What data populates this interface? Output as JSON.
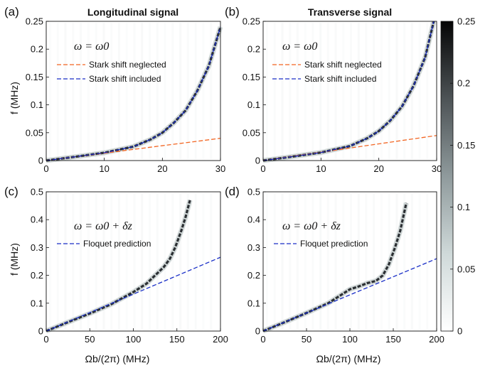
{
  "colors": {
    "red_dashed": "#f26522",
    "blue_dashed": "#1a2fc7"
  },
  "colorbar": {
    "min": 0,
    "max": 0.25,
    "ticks": [
      "0.25",
      "0.2",
      "0.15",
      "0.1",
      "0.05",
      "0"
    ]
  },
  "chart_data": [
    {
      "id": "a",
      "type": "heatmap",
      "panel_label": "(a)",
      "title": "Longitudinal signal",
      "condition": "ω = ω0",
      "xlabel": "",
      "ylabel": "f (MHz)",
      "xlim": [
        0,
        30
      ],
      "ylim": [
        0,
        0.25
      ],
      "xticks": [
        0,
        10,
        20,
        30
      ],
      "xticklabels": [
        "0",
        "10",
        "20",
        "30"
      ],
      "yticks": [
        0,
        0.05,
        0.1,
        0.15,
        0.2,
        0.25
      ],
      "yticklabels": [
        "0",
        "0.05",
        "0.1",
        "0.15",
        "0.2",
        "0.25"
      ],
      "legend": [
        "Stark shift neglected",
        "Stark shift included"
      ],
      "series": [
        {
          "name": "Stark shift neglected",
          "style": "dashed",
          "color": "#f26522",
          "x": [
            0,
            5,
            10,
            15,
            20,
            25,
            30
          ],
          "y": [
            0,
            0.0067,
            0.0133,
            0.02,
            0.0267,
            0.0333,
            0.04
          ]
        },
        {
          "name": "Stark shift included",
          "style": "dashed",
          "color": "#1a2fc7",
          "x": [
            0,
            5,
            10,
            15,
            18,
            20,
            22,
            24,
            26,
            28,
            30
          ],
          "y": [
            0,
            0.0068,
            0.014,
            0.025,
            0.038,
            0.05,
            0.068,
            0.09,
            0.125,
            0.17,
            0.24
          ]
        }
      ]
    },
    {
      "id": "b",
      "type": "heatmap",
      "panel_label": "(b)",
      "title": "Transverse signal",
      "condition": "ω = ω0",
      "xlabel": "",
      "ylabel": "",
      "xlim": [
        0,
        30
      ],
      "ylim": [
        0,
        0.25
      ],
      "xticks": [
        0,
        10,
        20,
        30
      ],
      "xticklabels": [
        "0",
        "10",
        "20",
        "30"
      ],
      "yticks": [
        0,
        0.05,
        0.1,
        0.15,
        0.2,
        0.25
      ],
      "yticklabels": [
        "0",
        "0.05",
        "0.1",
        "0.15",
        "0.2",
        "0.25"
      ],
      "legend": [
        "Stark shift neglected",
        "Stark shift included"
      ],
      "series": [
        {
          "name": "Stark shift neglected",
          "style": "dashed",
          "color": "#f26522",
          "x": [
            0,
            5,
            10,
            15,
            20,
            25,
            30
          ],
          "y": [
            0,
            0.0075,
            0.015,
            0.0225,
            0.03,
            0.0375,
            0.045
          ]
        },
        {
          "name": "Stark shift included",
          "style": "dashed",
          "color": "#1a2fc7",
          "x": [
            0,
            5,
            10,
            15,
            18,
            20,
            22,
            24,
            26,
            28,
            29.5
          ],
          "y": [
            0,
            0.007,
            0.0145,
            0.026,
            0.04,
            0.053,
            0.072,
            0.097,
            0.134,
            0.185,
            0.25
          ]
        }
      ]
    },
    {
      "id": "c",
      "type": "heatmap",
      "panel_label": "(c)",
      "condition": "ω = ω0 + δz",
      "xlabel": "Ωb/(2π) (MHz)",
      "ylabel": "f (MHz)",
      "xlim": [
        0,
        200
      ],
      "ylim": [
        0,
        0.5
      ],
      "xticks": [
        0,
        50,
        100,
        150,
        200
      ],
      "xticklabels": [
        "0",
        "50",
        "100",
        "150",
        "200"
      ],
      "yticks": [
        0,
        0.1,
        0.2,
        0.3,
        0.4,
        0.5
      ],
      "yticklabels": [
        "0",
        "0.1",
        "0.2",
        "0.3",
        "0.4",
        "0.5"
      ],
      "legend": [
        "Floquet prediction"
      ],
      "series": [
        {
          "name": "Floquet prediction",
          "style": "dashed",
          "color": "#1a2fc7",
          "x": [
            0,
            200
          ],
          "y": [
            0,
            0.265
          ]
        }
      ],
      "signal_trace": {
        "x": [
          0,
          25,
          50,
          75,
          100,
          115,
          125,
          135,
          142,
          148,
          155,
          160,
          165
        ],
        "y": [
          0,
          0.032,
          0.063,
          0.097,
          0.14,
          0.17,
          0.2,
          0.23,
          0.26,
          0.3,
          0.36,
          0.41,
          0.47
        ]
      }
    },
    {
      "id": "d",
      "type": "heatmap",
      "panel_label": "(d)",
      "condition": "ω = ω0 + δz",
      "xlabel": "Ωb/(2π) (MHz)",
      "ylabel": "",
      "xlim": [
        0,
        200
      ],
      "ylim": [
        0,
        0.5
      ],
      "xticks": [
        0,
        50,
        100,
        150,
        200
      ],
      "xticklabels": [
        "0",
        "50",
        "100",
        "150",
        "200"
      ],
      "yticks": [
        0,
        0.1,
        0.2,
        0.3,
        0.4,
        0.5
      ],
      "yticklabels": [
        "0",
        "0.1",
        "0.2",
        "0.3",
        "0.4",
        "0.5"
      ],
      "legend": [
        "Floquet prediction"
      ],
      "series": [
        {
          "name": "Floquet prediction",
          "style": "dashed",
          "color": "#1a2fc7",
          "x": [
            0,
            200
          ],
          "y": [
            0,
            0.26
          ]
        }
      ],
      "signal_trace": {
        "x": [
          0,
          25,
          50,
          75,
          100,
          110,
          120,
          130,
          138,
          145,
          152,
          158,
          165
        ],
        "y": [
          0,
          0.032,
          0.065,
          0.1,
          0.15,
          0.16,
          0.172,
          0.18,
          0.2,
          0.24,
          0.3,
          0.36,
          0.46
        ]
      }
    }
  ]
}
